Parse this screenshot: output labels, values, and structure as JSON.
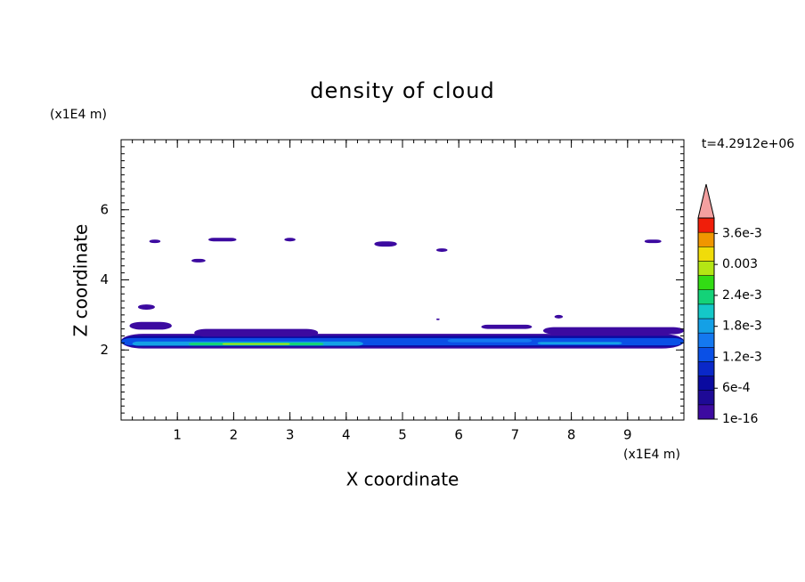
{
  "chart_data": {
    "type": "contour",
    "title": "density of cloud",
    "xlabel": "X coordinate",
    "ylabel": "Z coordinate",
    "x_unit_label": "(x1E4 m)",
    "y_unit_label": "(x1E4 m)",
    "time_label": "t=4.2912e+06",
    "xlim": [
      0,
      10
    ],
    "ylim": [
      0,
      8
    ],
    "xticks": [
      1,
      2,
      3,
      4,
      5,
      6,
      7,
      8,
      9
    ],
    "yticks": [
      2,
      4,
      6
    ],
    "colorbar": {
      "clim": [
        1e-16,
        0.0039
      ],
      "ticks": [
        {
          "value": 1e-16,
          "label": "1e-16"
        },
        {
          "value": 0.0006,
          "label": "6e-4"
        },
        {
          "value": 0.0012,
          "label": "1.2e-3"
        },
        {
          "value": 0.0018,
          "label": "1.8e-3"
        },
        {
          "value": 0.0024,
          "label": "2.4e-3"
        },
        0.003,
        {
          "value": 0.0036,
          "label": "3.6e-3"
        }
      ],
      "colors": [
        "#3c0aa0",
        "#1e0a96",
        "#0a0aa0",
        "#0a28c8",
        "#0a50e6",
        "#1478f0",
        "#14a0e6",
        "#14c8c8",
        "#14d278",
        "#32dc14",
        "#b4e614",
        "#f0dc0a",
        "#f09600",
        "#f01e0a"
      ],
      "over_color": "#f4a0a0"
    },
    "regions": [
      {
        "x": [
          0,
          10
        ],
        "z": [
          2.04,
          2.46
        ],
        "value": 1e-16
      },
      {
        "x": [
          0,
          10
        ],
        "z": [
          2.09,
          2.4
        ],
        "value": 0.0006
      },
      {
        "x": [
          0,
          10
        ],
        "z": [
          2.13,
          2.34
        ],
        "value": 0.0012
      },
      {
        "x": [
          0.2,
          4.3
        ],
        "z": [
          2.12,
          2.24
        ],
        "value": 0.0018
      },
      {
        "x": [
          1.2,
          3.6
        ],
        "z": [
          2.13,
          2.21
        ],
        "value": 0.0024
      },
      {
        "x": [
          1.8,
          3.0
        ],
        "z": [
          2.15,
          2.19
        ],
        "value": 0.003
      },
      {
        "x": [
          7.4,
          8.9
        ],
        "z": [
          2.16,
          2.23
        ],
        "value": 0.0018
      },
      {
        "x": [
          5.8,
          7.3
        ],
        "z": [
          2.22,
          2.31
        ],
        "value": 0.0015
      },
      {
        "x": [
          1.3,
          3.5
        ],
        "z": [
          2.38,
          2.6
        ],
        "value": 1e-16
      },
      {
        "x": [
          7.5,
          10
        ],
        "z": [
          2.45,
          2.65
        ],
        "value": 1e-16
      },
      {
        "x": [
          6.4,
          7.3
        ],
        "z": [
          2.6,
          2.72
        ],
        "value": 1e-16
      },
      {
        "x": [
          0.15,
          0.9
        ],
        "z": [
          2.58,
          2.8
        ],
        "value": 1e-16
      },
      {
        "x": [
          0.3,
          0.6
        ],
        "z": [
          3.15,
          3.3
        ],
        "value": 1e-16
      },
      {
        "x": [
          0.5,
          0.7
        ],
        "z": [
          5.05,
          5.15
        ],
        "value": 1e-16
      },
      {
        "x": [
          1.55,
          2.05
        ],
        "z": [
          5.1,
          5.2
        ],
        "value": 1e-16
      },
      {
        "x": [
          1.25,
          1.5
        ],
        "z": [
          4.5,
          4.6
        ],
        "value": 1e-16
      },
      {
        "x": [
          2.9,
          3.1
        ],
        "z": [
          5.1,
          5.2
        ],
        "value": 1e-16
      },
      {
        "x": [
          4.5,
          4.9
        ],
        "z": [
          4.95,
          5.1
        ],
        "value": 1e-16
      },
      {
        "x": [
          5.6,
          5.8
        ],
        "z": [
          4.8,
          4.9
        ],
        "value": 1e-16
      },
      {
        "x": [
          9.3,
          9.6
        ],
        "z": [
          5.05,
          5.15
        ],
        "value": 1e-16
      },
      {
        "x": [
          7.7,
          7.85
        ],
        "z": [
          2.9,
          3.0
        ],
        "value": 1e-16
      },
      {
        "x": [
          5.6,
          5.66
        ],
        "z": [
          2.85,
          2.9
        ],
        "value": 1e-16
      }
    ]
  }
}
